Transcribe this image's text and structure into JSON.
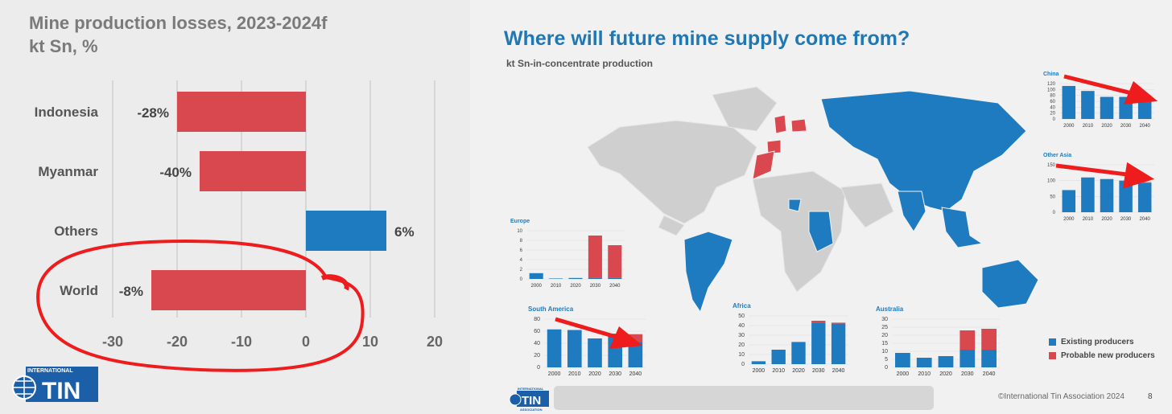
{
  "left_title": "Mine production losses, 2023-2024f",
  "left_subtitle": "kt Sn, %",
  "right_title": "Where will future mine supply come from?",
  "right_subtitle": "kt Sn-in-concentrate production",
  "legend": {
    "existing": "Existing producers",
    "probable": "Probable new producers"
  },
  "footer": {
    "copyright": "©International Tin Association 2024",
    "page": "8"
  },
  "logo": {
    "top_text": "INTERNATIONAL",
    "main_text": "TIN",
    "bottom_text": "ASSOCIATION"
  },
  "colors": {
    "red": "#d9474f",
    "blue": "#1f7bbf",
    "map_gray": "#cfcfcf",
    "annotation_red": "#ee1c1c"
  },
  "chart_data": [
    {
      "type": "bar",
      "orientation": "horizontal",
      "title": "Mine production losses, 2023-2024f",
      "subtitle": "kt Sn, %",
      "categories": [
        "Indonesia",
        "Myanmar",
        "Others",
        "World"
      ],
      "values": [
        -20,
        -16.5,
        12.5,
        -24
      ],
      "labels": [
        "-28%",
        "-40%",
        "6%",
        "-8%"
      ],
      "xlim": [
        -30,
        20
      ],
      "xticks": [
        -30,
        -20,
        -10,
        0,
        10,
        20
      ],
      "grid": true
    },
    {
      "type": "bar",
      "stacked": true,
      "title": "China",
      "categories": [
        "2000",
        "2010",
        "2020",
        "2030",
        "2040"
      ],
      "ylim": [
        0,
        120
      ],
      "yticks": [
        0,
        20,
        40,
        60,
        80,
        100,
        120
      ],
      "series": [
        {
          "name": "Existing producers",
          "values": [
            112,
            95,
            75,
            75,
            75
          ]
        },
        {
          "name": "Probable new producers",
          "values": [
            0,
            0,
            0,
            0,
            0
          ]
        }
      ]
    },
    {
      "type": "bar",
      "stacked": true,
      "title": "Other Asia",
      "categories": [
        "2000",
        "2010",
        "2020",
        "2030",
        "2040"
      ],
      "ylim": [
        0,
        150
      ],
      "yticks": [
        0,
        50,
        100,
        150
      ],
      "series": [
        {
          "name": "Existing producers",
          "values": [
            70,
            110,
            105,
            100,
            92
          ]
        },
        {
          "name": "Probable new producers",
          "values": [
            0,
            0,
            0,
            0,
            3
          ]
        }
      ]
    },
    {
      "type": "bar",
      "stacked": true,
      "title": "Europe",
      "categories": [
        "2000",
        "2010",
        "2020",
        "2030",
        "2040"
      ],
      "ylim": [
        0,
        10
      ],
      "yticks": [
        0,
        2,
        4,
        6,
        8,
        10
      ],
      "series": [
        {
          "name": "Existing producers",
          "values": [
            1.2,
            0.1,
            0.2,
            0.3,
            0.3
          ]
        },
        {
          "name": "Probable new producers",
          "values": [
            0,
            0,
            0,
            8.7,
            6.7
          ]
        }
      ]
    },
    {
      "type": "bar",
      "stacked": true,
      "title": "South America",
      "categories": [
        "2000",
        "2010",
        "2020",
        "2030",
        "2040"
      ],
      "ylim": [
        0,
        80
      ],
      "yticks": [
        0,
        20,
        40,
        60,
        80
      ],
      "series": [
        {
          "name": "Existing producers",
          "values": [
            63,
            62,
            48,
            50,
            42
          ]
        },
        {
          "name": "Probable new producers",
          "values": [
            0,
            0,
            0,
            6,
            13
          ]
        }
      ]
    },
    {
      "type": "bar",
      "stacked": true,
      "title": "Africa",
      "categories": [
        "2000",
        "2010",
        "2020",
        "2030",
        "2040"
      ],
      "ylim": [
        0,
        50
      ],
      "yticks": [
        0,
        10,
        20,
        30,
        40,
        50
      ],
      "series": [
        {
          "name": "Existing producers",
          "values": [
            3,
            15,
            23,
            43,
            42
          ]
        },
        {
          "name": "Probable new producers",
          "values": [
            0,
            0,
            0,
            2,
            1
          ]
        }
      ]
    },
    {
      "type": "bar",
      "stacked": true,
      "title": "Australia",
      "categories": [
        "2000",
        "2010",
        "2020",
        "2030",
        "2040"
      ],
      "ylim": [
        0,
        30
      ],
      "yticks": [
        0,
        5,
        10,
        15,
        20,
        25,
        30
      ],
      "series": [
        {
          "name": "Existing producers",
          "values": [
            9,
            6,
            7,
            11,
            11
          ]
        },
        {
          "name": "Probable new producers",
          "values": [
            0,
            0,
            0,
            12,
            13
          ]
        }
      ]
    }
  ]
}
